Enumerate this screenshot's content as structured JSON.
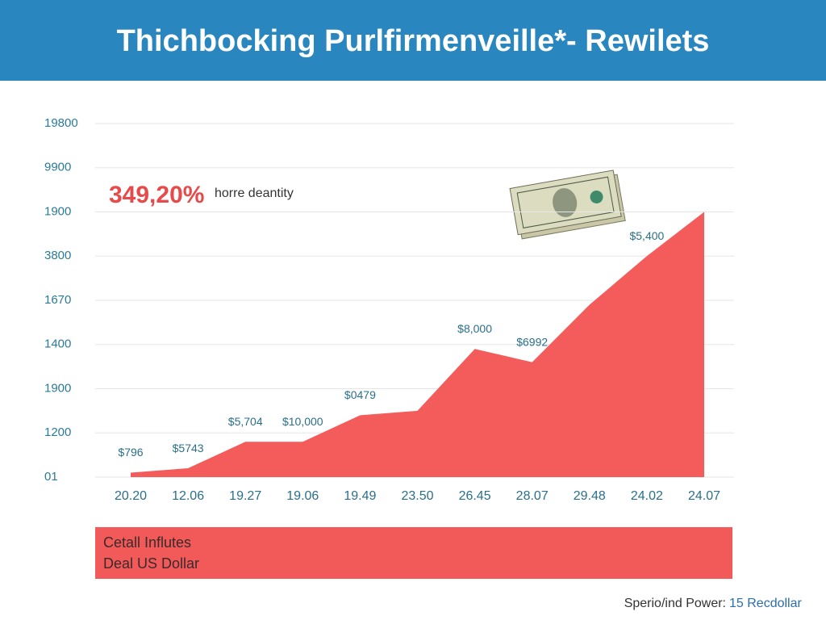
{
  "chart_data": {
    "type": "area",
    "title": "Thichbocking Purlfirmenveille*- Rewilets",
    "highlight": {
      "value_text": "349,20%",
      "text": "horre deantity"
    },
    "categories": [
      "20.20",
      "12.06",
      "19.27",
      "19.06",
      "19.49",
      "23.50",
      "26.45",
      "28.07",
      "29.48",
      "24.02",
      "24.07"
    ],
    "values": [
      0.1,
      0.2,
      0.8,
      0.8,
      1.4,
      1.5,
      2.9,
      2.6,
      3.9,
      5.0,
      6.0
    ],
    "point_labels": [
      "$796",
      "$5743",
      "$5,704",
      "$10,000",
      "$0479",
      null,
      "$8,000",
      "$6992",
      null,
      "$5,400",
      null
    ],
    "color": "#f45b5b",
    "ylim": [
      0,
      8
    ],
    "yticks": [
      {
        "value": 0,
        "label": "01"
      },
      {
        "value": 1,
        "label": "1200"
      },
      {
        "value": 2,
        "label": "1900"
      },
      {
        "value": 3,
        "label": "1400"
      },
      {
        "value": 4,
        "label": "1670"
      },
      {
        "value": 5,
        "label": "3800"
      },
      {
        "value": 6,
        "label": "1900"
      },
      {
        "value": 7,
        "label": "9900"
      },
      {
        "value": 8,
        "label": "19800"
      }
    ],
    "grid": true,
    "banner": [
      "Cetall Influtes",
      "Deal US Dollar"
    ],
    "footer": {
      "text": "Sperio/ind Power:",
      "highlight": "15 Recdollar"
    }
  }
}
